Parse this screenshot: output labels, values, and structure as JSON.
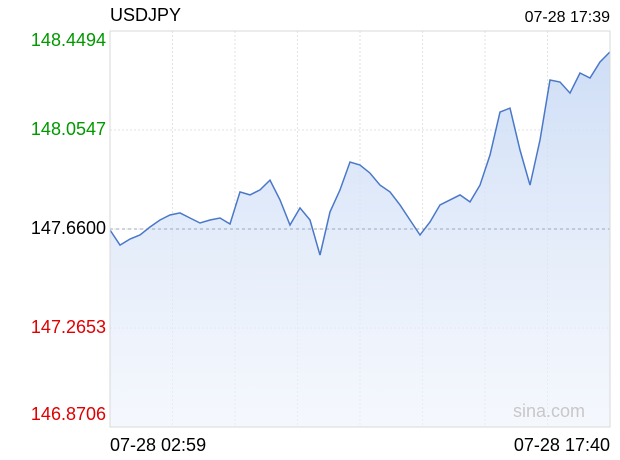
{
  "chart_data": {
    "type": "line",
    "title": "USDJPY",
    "timestamp": "07-28 17:39",
    "watermark": "sina.com",
    "categories": [
      "07-28 02:59",
      null,
      null,
      null,
      null,
      null,
      null,
      null,
      null,
      null,
      null,
      null,
      null,
      null,
      null,
      null,
      null,
      null,
      null,
      null,
      null,
      null,
      null,
      null,
      null,
      null,
      null,
      null,
      null,
      null,
      null,
      null,
      null,
      null,
      null,
      null,
      null,
      null,
      null,
      null,
      null,
      null,
      null,
      null,
      null,
      null,
      null,
      null,
      null,
      null,
      "07-28 17:40"
    ],
    "values": [
      147.656,
      147.596,
      147.62,
      147.636,
      147.668,
      147.696,
      147.716,
      147.724,
      147.704,
      147.684,
      147.696,
      147.704,
      147.68,
      147.808,
      147.796,
      147.816,
      147.855,
      147.776,
      147.676,
      147.744,
      147.696,
      147.556,
      147.728,
      147.816,
      147.927,
      147.915,
      147.883,
      147.835,
      147.808,
      147.756,
      147.696,
      147.636,
      147.688,
      147.756,
      147.776,
      147.796,
      147.768,
      147.835,
      147.955,
      148.126,
      148.142,
      147.975,
      147.835,
      148.015,
      148.254,
      148.246,
      148.202,
      148.282,
      148.262,
      148.326,
      148.366
    ],
    "color": "#4a78c8",
    "ylim": [
      146.8706,
      148.4494
    ],
    "yticks": [
      148.4494,
      148.0547,
      {
        "value": 147.66,
        "label": "147.6600"
      },
      147.2653,
      146.8706
    ],
    "ytick_colors": [
      "#009900",
      "#009900",
      "#000000",
      "#e00000",
      "#e00000"
    ],
    "reference": 147.66,
    "grid": true
  }
}
